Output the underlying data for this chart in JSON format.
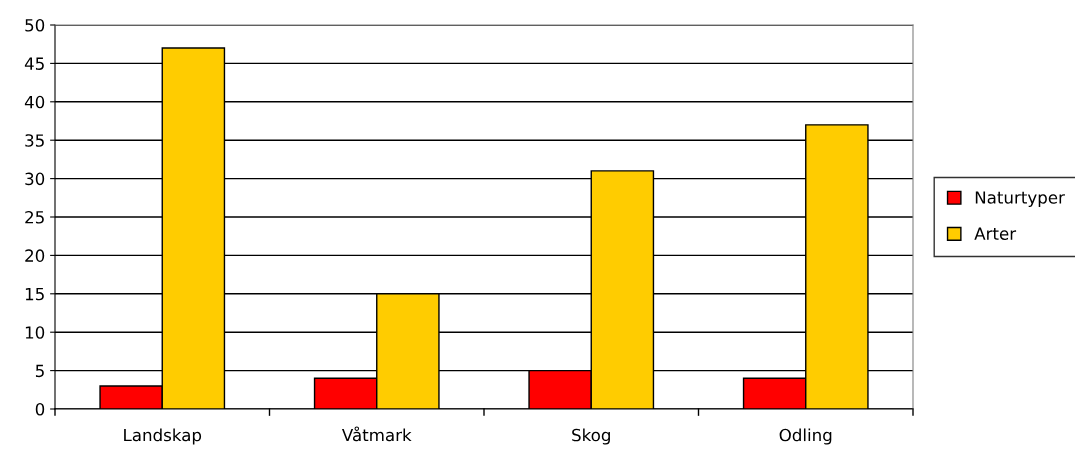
{
  "chart_data": {
    "type": "bar",
    "categories": [
      "Landskap",
      "Våtmark",
      "Skog",
      "Odling"
    ],
    "series": [
      {
        "name": "Naturtyper",
        "color": "#ff0000",
        "values": [
          3,
          4,
          5,
          4
        ]
      },
      {
        "name": "Arter",
        "color": "#ffcc00",
        "values": [
          47,
          15,
          31,
          37
        ]
      }
    ],
    "ylim": [
      0,
      50
    ],
    "yticks": [
      0,
      5,
      10,
      15,
      20,
      25,
      30,
      35,
      40,
      45,
      50
    ],
    "grid": "y",
    "legend": "right"
  }
}
